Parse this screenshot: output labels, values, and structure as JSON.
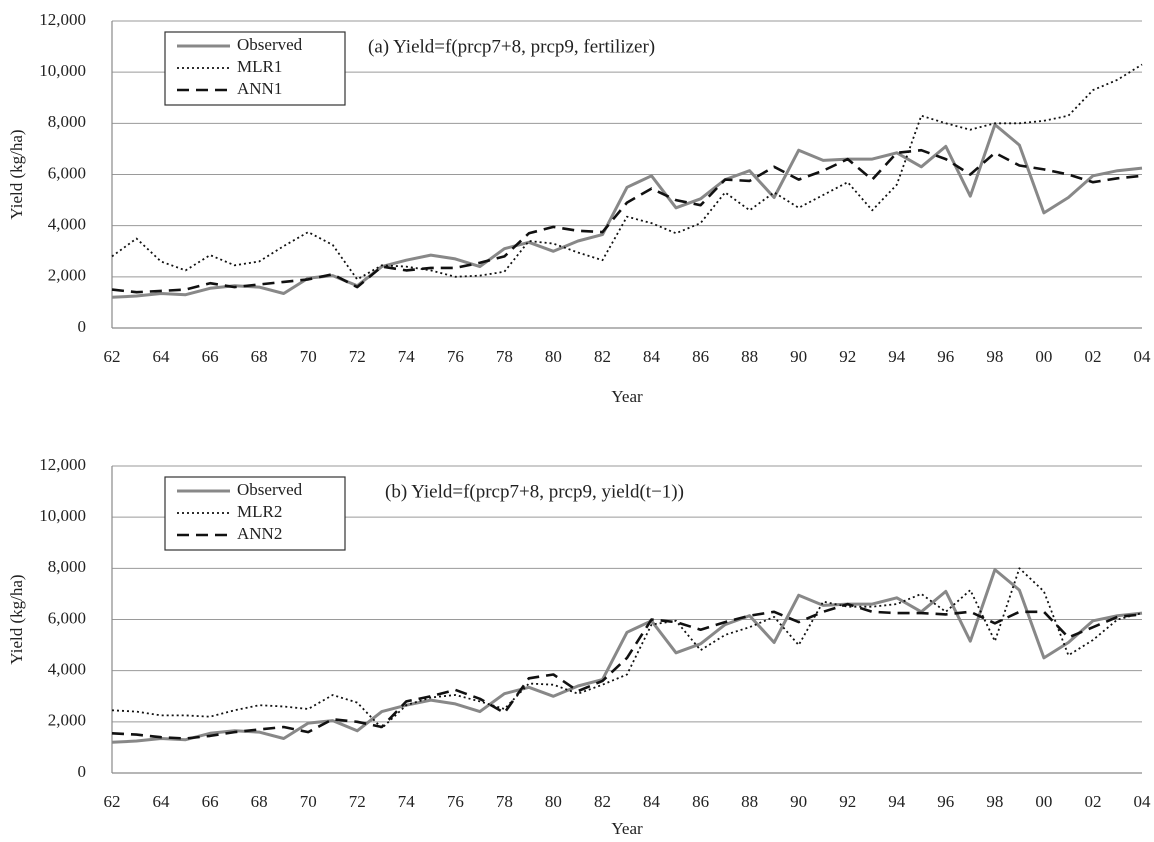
{
  "chart_data": [
    {
      "type": "line",
      "title": "(a) Yield=f(prcp7+8, prcp9, fertilizer)",
      "x_label": "Year",
      "y_label": "Yield (kg/ha)",
      "categories": [
        "62",
        null,
        "64",
        null,
        "66",
        null,
        "68",
        null,
        "70",
        null,
        "72",
        null,
        "74",
        null,
        "76",
        null,
        "78",
        null,
        "80",
        null,
        "82",
        null,
        "84",
        null,
        "86",
        null,
        "88",
        null,
        "90",
        null,
        "92",
        null,
        "94",
        null,
        "96",
        null,
        "98",
        null,
        "00",
        null,
        "02",
        null,
        "04"
      ],
      "ylim": [
        0,
        12000
      ],
      "yticks": [
        0,
        {
          "value": 2000,
          "label": "2,000"
        },
        {
          "value": 4000,
          "label": "4,000"
        },
        {
          "value": 6000,
          "label": "6,000"
        },
        {
          "value": 8000,
          "label": "8,000"
        },
        {
          "value": 10000,
          "label": "10,000"
        },
        {
          "value": 12000,
          "label": "12,000"
        }
      ],
      "grid": true,
      "legend": "upper left",
      "series": [
        {
          "name": "Observed",
          "color": "#888888",
          "style": "solid",
          "values": [
            1200,
            1250,
            1350,
            1300,
            1550,
            1650,
            1600,
            1350,
            1950,
            2050,
            1650,
            2400,
            2650,
            2850,
            2700,
            2400,
            3100,
            3350,
            3000,
            3400,
            3650,
            5500,
            5950,
            4700,
            5050,
            5800,
            6150,
            5100,
            6950,
            6550,
            6600,
            6600,
            6850,
            6300,
            7100,
            5150,
            7950,
            7150,
            4500,
            5100,
            5950,
            6150,
            6250
          ]
        },
        {
          "name": "MLR1",
          "color": "#111111",
          "style": "dotted",
          "values": [
            2800,
            3500,
            2600,
            2250,
            2850,
            2450,
            2600,
            3200,
            3750,
            3250,
            1900,
            2450,
            2400,
            2250,
            2000,
            2050,
            2200,
            3400,
            3300,
            2950,
            2650,
            4350,
            4100,
            3700,
            4100,
            5300,
            4600,
            5300,
            4700,
            5200,
            5700,
            4600,
            5600,
            8300,
            8000,
            7750,
            8000,
            8000,
            8100,
            8300,
            9300,
            9700,
            10300
          ]
        },
        {
          "name": "ANN1",
          "color": "#111111",
          "style": "dashed",
          "values": [
            1500,
            1400,
            1450,
            1500,
            1750,
            1600,
            1700,
            1800,
            1900,
            2100,
            1600,
            2400,
            2250,
            2350,
            2350,
            2550,
            2800,
            3700,
            3950,
            3800,
            3750,
            4900,
            5450,
            5000,
            4800,
            5800,
            5750,
            6300,
            5800,
            6150,
            6600,
            5800,
            6850,
            6950,
            6600,
            6000,
            6850,
            6350,
            6200,
            6000,
            5700,
            5850,
            5950
          ]
        }
      ]
    },
    {
      "type": "line",
      "title": "(b) Yield=f(prcp7+8, prcp9, yield(t−1))",
      "x_label": "Year",
      "y_label": "Yield (kg/ha)",
      "categories": [
        "62",
        null,
        "64",
        null,
        "66",
        null,
        "68",
        null,
        "70",
        null,
        "72",
        null,
        "74",
        null,
        "76",
        null,
        "78",
        null,
        "80",
        null,
        "82",
        null,
        "84",
        null,
        "86",
        null,
        "88",
        null,
        "90",
        null,
        "92",
        null,
        "94",
        null,
        "96",
        null,
        "98",
        null,
        "00",
        null,
        "02",
        null,
        "04"
      ],
      "ylim": [
        0,
        12000
      ],
      "yticks": [
        0,
        {
          "value": 2000,
          "label": "2,000"
        },
        {
          "value": 4000,
          "label": "4,000"
        },
        {
          "value": 6000,
          "label": "6,000"
        },
        {
          "value": 8000,
          "label": "8,000"
        },
        {
          "value": 10000,
          "label": "10,000"
        },
        {
          "value": 12000,
          "label": "12,000"
        }
      ],
      "grid": true,
      "legend": "upper left",
      "series": [
        {
          "name": "Observed",
          "color": "#888888",
          "style": "solid",
          "values": [
            1200,
            1250,
            1350,
            1300,
            1550,
            1650,
            1600,
            1350,
            1950,
            2050,
            1650,
            2400,
            2650,
            2850,
            2700,
            2400,
            3100,
            3350,
            3000,
            3400,
            3650,
            5500,
            5950,
            4700,
            5050,
            5800,
            6150,
            5100,
            6950,
            6550,
            6600,
            6600,
            6850,
            6300,
            7100,
            5150,
            7950,
            7150,
            4500,
            5100,
            5950,
            6150,
            6250
          ]
        },
        {
          "name": "MLR2",
          "color": "#111111",
          "style": "dotted",
          "values": [
            2450,
            2400,
            2250,
            2250,
            2200,
            2450,
            2650,
            2600,
            2500,
            3050,
            2750,
            1750,
            2650,
            2950,
            3050,
            2800,
            2500,
            3500,
            3450,
            3100,
            3450,
            3850,
            5800,
            5950,
            4800,
            5400,
            5700,
            6100,
            5000,
            6700,
            6500,
            6500,
            6600,
            7000,
            6300,
            7150,
            5150,
            8000,
            7100,
            4600,
            5200,
            6000,
            6250
          ]
        },
        {
          "name": "ANN2",
          "color": "#111111",
          "style": "dashed",
          "values": [
            1550,
            1500,
            1400,
            1350,
            1450,
            1600,
            1700,
            1800,
            1600,
            2100,
            2000,
            1800,
            2800,
            3000,
            3250,
            2900,
            2350,
            3700,
            3850,
            3200,
            3600,
            4500,
            6000,
            5900,
            5600,
            5900,
            6150,
            6300,
            5900,
            6300,
            6600,
            6300,
            6250,
            6250,
            6200,
            6300,
            5850,
            6300,
            6300,
            5300,
            5700,
            6100,
            6200
          ]
        }
      ]
    }
  ]
}
